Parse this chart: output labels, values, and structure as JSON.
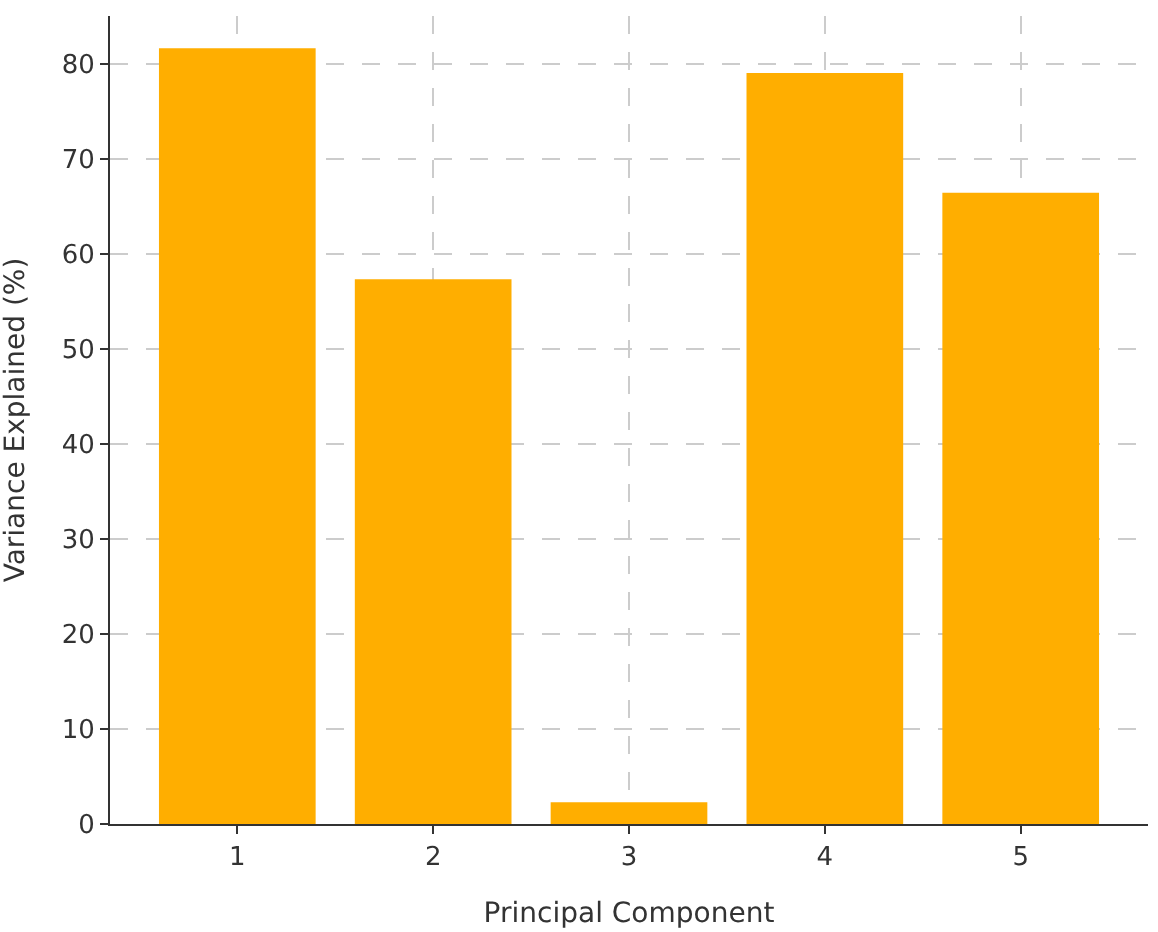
{
  "chart_data": {
    "type": "bar",
    "xlabel": "Principal Component",
    "ylabel": "Variance Explained (%)",
    "categories": [
      "1",
      "2",
      "3",
      "4",
      "5"
    ],
    "values": [
      81.6,
      57.3,
      2.3,
      79.0,
      66.4
    ],
    "color": "#ffae00",
    "ylim": [
      0,
      85
    ],
    "yticks": [
      0,
      10,
      20,
      30,
      40,
      50,
      60,
      70,
      80
    ],
    "grid": true
  }
}
